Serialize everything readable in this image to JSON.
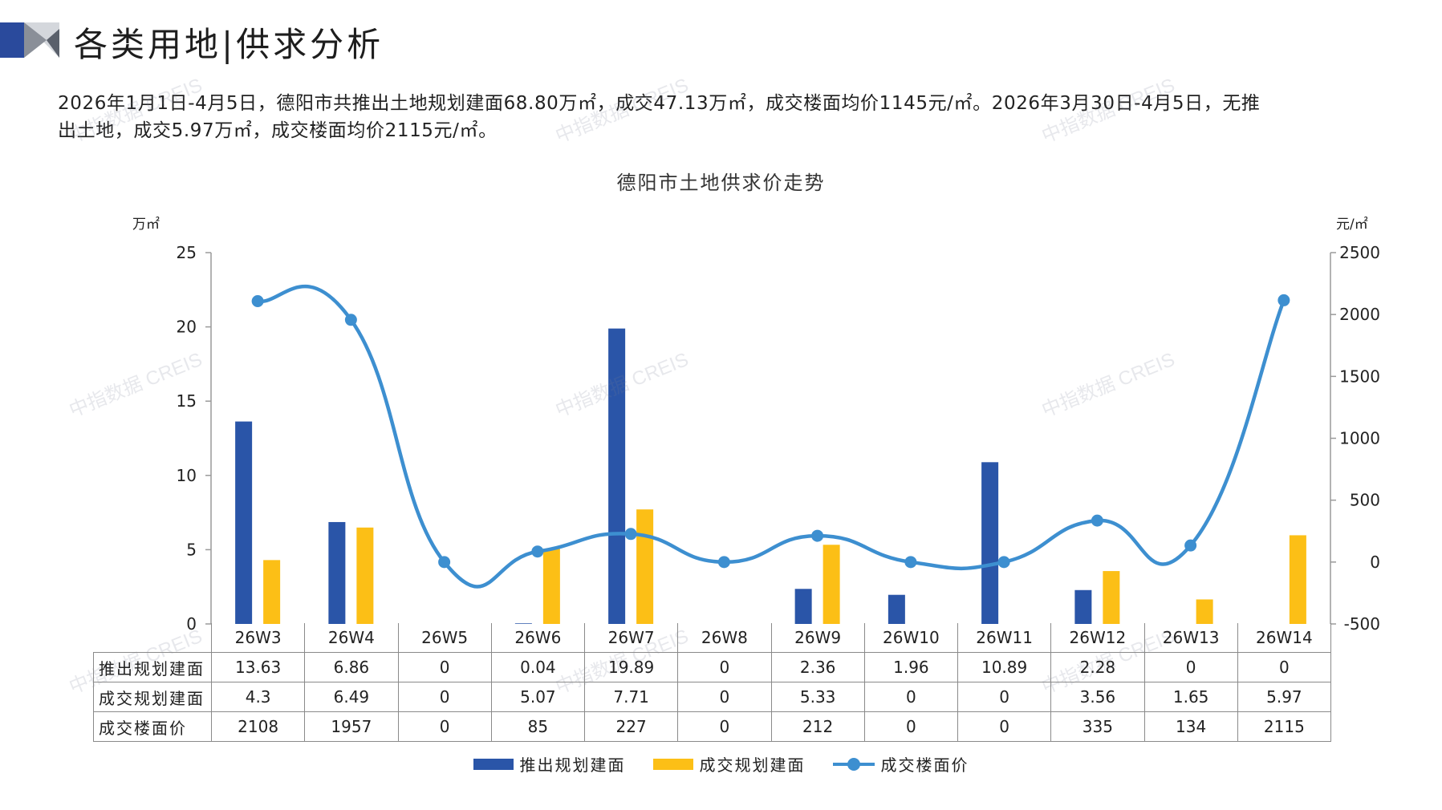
{
  "page": {
    "title": "各类用地|供求分析",
    "summary_line1": "2026年1月1日-4月5日，德阳市共推出土地规划建面68.80万㎡，成交47.13万㎡，成交楼面均价1145元/㎡。2026年3月30日-4月5日，无推",
    "summary_line2": "出土地，成交5.97万㎡，成交楼面均价2115元/㎡。",
    "watermark_text": "中指数据 CREIS"
  },
  "colors": {
    "supply_bar": "#2a55a8",
    "deal_bar": "#fcbf16",
    "price_line": "#3d8fd0",
    "header_dark": "#2a4a9c",
    "header_grey": "#8a8f98"
  },
  "chart_data": {
    "type": "bar",
    "title": "德阳市土地供求价走势",
    "left_unit": "万㎡",
    "right_unit": "元/㎡",
    "categories": [
      "26W3",
      "26W4",
      "26W5",
      "26W6",
      "26W7",
      "26W8",
      "26W9",
      "26W10",
      "26W11",
      "26W12",
      "26W13",
      "26W14"
    ],
    "left_axis": {
      "ylim": [
        0,
        25
      ],
      "ticks": [
        0,
        5,
        10,
        15,
        20,
        25
      ]
    },
    "right_axis": {
      "ylim": [
        -500,
        2500
      ],
      "ticks": [
        -500,
        0,
        500,
        1000,
        1500,
        2000,
        2500
      ]
    },
    "grid": false,
    "legend_position": "bottom",
    "series": [
      {
        "name": "推出规划建面",
        "type": "bar",
        "axis": "left",
        "display": [
          "13.63",
          "6.86",
          "0",
          "0.04",
          "19.89",
          "0",
          "2.36",
          "1.96",
          "10.89",
          "2.28",
          "0",
          "0"
        ],
        "values": [
          13.63,
          6.86,
          0,
          0.04,
          19.89,
          0,
          2.36,
          1.96,
          10.89,
          2.28,
          0,
          0
        ]
      },
      {
        "name": "成交规划建面",
        "type": "bar",
        "axis": "left",
        "display": [
          "4.3",
          "6.49",
          "0",
          "5.07",
          "7.71",
          "0",
          "5.33",
          "0",
          "0",
          "3.56",
          "1.65",
          "5.97"
        ],
        "values": [
          4.3,
          6.49,
          0,
          5.07,
          7.71,
          0,
          5.33,
          0,
          0,
          3.56,
          1.65,
          5.97
        ]
      },
      {
        "name": "成交楼面价",
        "type": "line",
        "axis": "right",
        "display": [
          "2108",
          "1957",
          "0",
          "85",
          "227",
          "0",
          "212",
          "0",
          "0",
          "335",
          "134",
          "2115"
        ],
        "values": [
          2108,
          1957,
          0,
          85,
          227,
          0,
          212,
          0,
          0,
          335,
          134,
          2115
        ]
      }
    ]
  }
}
